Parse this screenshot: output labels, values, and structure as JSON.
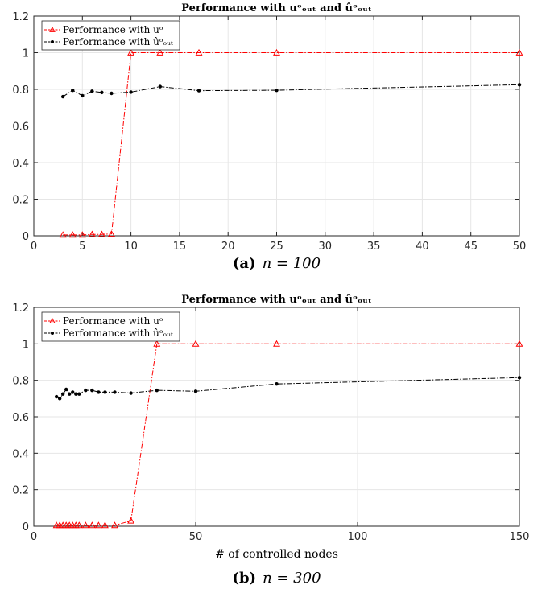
{
  "chart_data": [
    {
      "type": "line",
      "title": "Performance with uᵒₒᵤₜ and ûᵒₒᵤₜ",
      "caption_label": "(a)",
      "caption_text": "n = 100",
      "xlabel": "",
      "ylabel": "",
      "xlim": [
        0,
        50
      ],
      "ylim": [
        0,
        1.2
      ],
      "xticks": [
        0,
        5,
        10,
        15,
        20,
        25,
        30,
        35,
        40,
        45,
        50
      ],
      "yticks": [
        0,
        0.2,
        0.4,
        0.6,
        0.8,
        1,
        1.2
      ],
      "grid": true,
      "legend_position": "top-left",
      "series": [
        {
          "name": "Performance with uᵒ",
          "color": "#ff0000",
          "marker": "triangle",
          "line_style": "dash-dot",
          "x": [
            3,
            4,
            5,
            6,
            7,
            8,
            10,
            13,
            17,
            25,
            50
          ],
          "y": [
            0.005,
            0.005,
            0.005,
            0.008,
            0.008,
            0.01,
            1.0,
            1.0,
            1.0,
            1.0,
            1.0
          ]
        },
        {
          "name": "Performance with ûᵒₒᵤₜ",
          "color": "#000000",
          "marker": "dot",
          "line_style": "dash-dot",
          "x": [
            3,
            4,
            5,
            6,
            7,
            8,
            10,
            13,
            17,
            25,
            50
          ],
          "y": [
            0.76,
            0.795,
            0.765,
            0.79,
            0.783,
            0.778,
            0.785,
            0.815,
            0.793,
            0.795,
            0.825
          ]
        }
      ]
    },
    {
      "type": "line",
      "title": "Performance with uᵒₒᵤₜ and ûᵒₒᵤₜ",
      "caption_label": "(b)",
      "caption_text": "n = 300",
      "xlabel": "# of controlled nodes",
      "ylabel": "",
      "xlim": [
        0,
        150
      ],
      "ylim": [
        0,
        1.2
      ],
      "xticks": [
        0,
        50,
        100,
        150
      ],
      "yticks": [
        0,
        0.2,
        0.4,
        0.6,
        0.8,
        1,
        1.2
      ],
      "grid": true,
      "legend_position": "top-left",
      "series": [
        {
          "name": "Performance with uᵒ",
          "color": "#ff0000",
          "marker": "triangle",
          "line_style": "dash-dot",
          "x": [
            7,
            8,
            9,
            10,
            11,
            12,
            13,
            14,
            16,
            18,
            20,
            22,
            25,
            30,
            38,
            50,
            75,
            150
          ],
          "y": [
            0.005,
            0.005,
            0.005,
            0.005,
            0.005,
            0.005,
            0.005,
            0.005,
            0.005,
            0.005,
            0.005,
            0.005,
            0.005,
            0.03,
            1.0,
            1.0,
            1.0,
            1.0
          ]
        },
        {
          "name": "Performance with ûᵒₒᵤₜ",
          "color": "#000000",
          "marker": "dot",
          "line_style": "dash-dot",
          "x": [
            7,
            8,
            9,
            10,
            11,
            12,
            13,
            14,
            16,
            18,
            20,
            22,
            25,
            30,
            38,
            50,
            75,
            150
          ],
          "y": [
            0.71,
            0.7,
            0.725,
            0.75,
            0.725,
            0.735,
            0.725,
            0.725,
            0.745,
            0.745,
            0.735,
            0.735,
            0.735,
            0.73,
            0.745,
            0.74,
            0.78,
            0.815
          ]
        }
      ]
    }
  ]
}
